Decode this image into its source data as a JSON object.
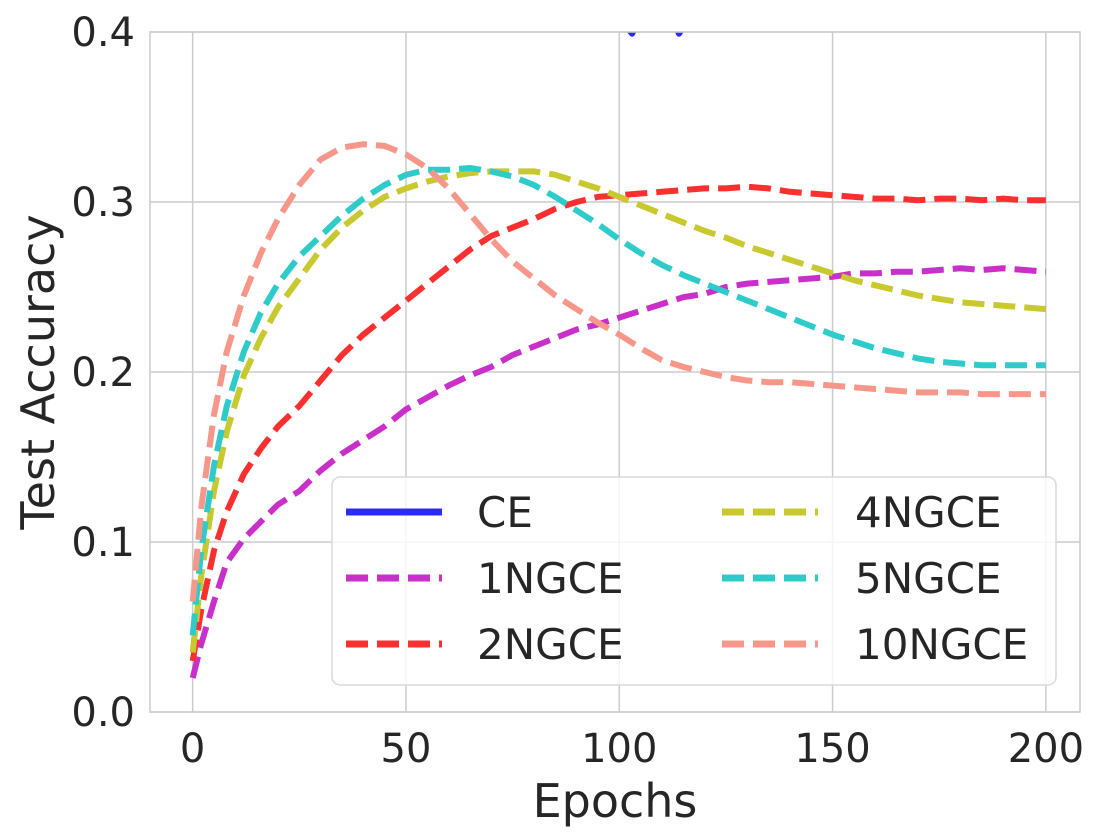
{
  "chart_data": {
    "type": "line",
    "title": "",
    "xlabel": "Epochs",
    "ylabel": "Test Accuracy",
    "xlim": [
      -10,
      208
    ],
    "ylim": [
      0.0,
      0.4
    ],
    "xticks": [
      0,
      50,
      100,
      150,
      200
    ],
    "xtick_labels": [
      "0",
      "50",
      "100",
      "150",
      "200"
    ],
    "yticks": [
      0.0,
      0.1,
      0.2,
      0.3,
      0.4
    ],
    "ytick_labels": [
      "0.0",
      "0.1",
      "0.2",
      "0.3",
      "0.4"
    ],
    "grid": true,
    "legend": {
      "position": "lower-right",
      "columns": 2
    },
    "series": [
      {
        "name": "CE",
        "color": "#2b2bf5",
        "dash": "solid",
        "x": [
          102,
          103,
          104,
          105,
          106,
          107,
          108,
          109,
          110,
          111,
          112,
          113,
          114,
          115
        ],
        "y": [
          0.402,
          0.399,
          0.404,
          0.403,
          0.405,
          0.404,
          0.406,
          0.405,
          0.404,
          0.406,
          0.403,
          0.405,
          0.399,
          0.403
        ]
      },
      {
        "name": "1NGCE",
        "color": "#c930c9",
        "dash": "dashed",
        "x": [
          0,
          2,
          5,
          8,
          12,
          16,
          20,
          25,
          30,
          35,
          40,
          45,
          50,
          55,
          60,
          65,
          70,
          75,
          80,
          85,
          90,
          95,
          100,
          105,
          110,
          115,
          120,
          125,
          130,
          135,
          140,
          145,
          150,
          155,
          160,
          165,
          170,
          175,
          180,
          185,
          190,
          195,
          200
        ],
        "y": [
          0.02,
          0.04,
          0.065,
          0.088,
          0.102,
          0.112,
          0.122,
          0.13,
          0.142,
          0.152,
          0.16,
          0.168,
          0.178,
          0.185,
          0.192,
          0.198,
          0.203,
          0.21,
          0.215,
          0.22,
          0.225,
          0.228,
          0.232,
          0.236,
          0.24,
          0.244,
          0.246,
          0.25,
          0.252,
          0.253,
          0.254,
          0.255,
          0.256,
          0.258,
          0.258,
          0.259,
          0.259,
          0.26,
          0.261,
          0.26,
          0.261,
          0.26,
          0.259
        ]
      },
      {
        "name": "2NGCE",
        "color": "#fa2f2f",
        "dash": "dashed",
        "x": [
          0,
          2,
          5,
          8,
          12,
          16,
          20,
          25,
          30,
          35,
          40,
          45,
          50,
          55,
          60,
          65,
          70,
          75,
          80,
          85,
          90,
          95,
          100,
          105,
          110,
          115,
          120,
          125,
          130,
          135,
          140,
          145,
          150,
          155,
          160,
          165,
          170,
          175,
          180,
          185,
          190,
          195,
          200
        ],
        "y": [
          0.03,
          0.06,
          0.095,
          0.118,
          0.14,
          0.155,
          0.168,
          0.18,
          0.195,
          0.21,
          0.222,
          0.232,
          0.242,
          0.252,
          0.262,
          0.272,
          0.28,
          0.285,
          0.29,
          0.296,
          0.3,
          0.303,
          0.304,
          0.305,
          0.306,
          0.307,
          0.308,
          0.308,
          0.309,
          0.308,
          0.306,
          0.305,
          0.304,
          0.303,
          0.302,
          0.302,
          0.301,
          0.302,
          0.302,
          0.301,
          0.302,
          0.301,
          0.301
        ]
      },
      {
        "name": "4NGCE",
        "color": "#c8c82f",
        "dash": "dashed",
        "x": [
          0,
          2,
          5,
          8,
          12,
          16,
          20,
          25,
          30,
          35,
          40,
          45,
          50,
          55,
          60,
          65,
          70,
          75,
          80,
          85,
          90,
          95,
          100,
          105,
          110,
          115,
          120,
          125,
          130,
          135,
          140,
          145,
          150,
          155,
          160,
          165,
          170,
          175,
          180,
          185,
          190,
          195,
          200
        ],
        "y": [
          0.035,
          0.08,
          0.13,
          0.165,
          0.198,
          0.22,
          0.238,
          0.255,
          0.272,
          0.285,
          0.295,
          0.303,
          0.308,
          0.312,
          0.315,
          0.317,
          0.318,
          0.318,
          0.318,
          0.316,
          0.312,
          0.308,
          0.303,
          0.298,
          0.293,
          0.288,
          0.283,
          0.279,
          0.274,
          0.27,
          0.266,
          0.262,
          0.258,
          0.254,
          0.251,
          0.248,
          0.245,
          0.243,
          0.241,
          0.24,
          0.239,
          0.238,
          0.237
        ]
      },
      {
        "name": "5NGCE",
        "color": "#2fcbcb",
        "dash": "dashed",
        "x": [
          0,
          2,
          5,
          8,
          12,
          16,
          20,
          25,
          30,
          35,
          40,
          45,
          50,
          55,
          60,
          65,
          70,
          75,
          80,
          85,
          90,
          95,
          100,
          105,
          110,
          115,
          120,
          125,
          130,
          135,
          140,
          145,
          150,
          155,
          160,
          165,
          170,
          175,
          180,
          185,
          190,
          195,
          200
        ],
        "y": [
          0.045,
          0.095,
          0.145,
          0.18,
          0.212,
          0.235,
          0.252,
          0.268,
          0.28,
          0.292,
          0.302,
          0.31,
          0.316,
          0.319,
          0.319,
          0.32,
          0.318,
          0.315,
          0.31,
          0.303,
          0.295,
          0.287,
          0.278,
          0.27,
          0.263,
          0.257,
          0.252,
          0.247,
          0.242,
          0.237,
          0.232,
          0.227,
          0.222,
          0.218,
          0.214,
          0.211,
          0.208,
          0.206,
          0.205,
          0.204,
          0.204,
          0.204,
          0.204
        ]
      },
      {
        "name": "10NGCE",
        "color": "#f7978a",
        "dash": "dashed",
        "x": [
          0,
          2,
          5,
          8,
          12,
          16,
          20,
          25,
          30,
          35,
          40,
          45,
          50,
          55,
          60,
          65,
          70,
          75,
          80,
          85,
          90,
          95,
          100,
          105,
          110,
          115,
          120,
          125,
          130,
          135,
          140,
          145,
          150,
          155,
          160,
          165,
          170,
          175,
          180,
          185,
          190,
          195,
          200
        ],
        "y": [
          0.065,
          0.12,
          0.175,
          0.212,
          0.245,
          0.27,
          0.29,
          0.31,
          0.325,
          0.332,
          0.334,
          0.333,
          0.328,
          0.32,
          0.308,
          0.293,
          0.278,
          0.265,
          0.255,
          0.245,
          0.237,
          0.229,
          0.222,
          0.214,
          0.207,
          0.203,
          0.2,
          0.197,
          0.195,
          0.194,
          0.194,
          0.193,
          0.192,
          0.191,
          0.19,
          0.189,
          0.188,
          0.188,
          0.188,
          0.187,
          0.187,
          0.187,
          0.187
        ]
      }
    ]
  }
}
